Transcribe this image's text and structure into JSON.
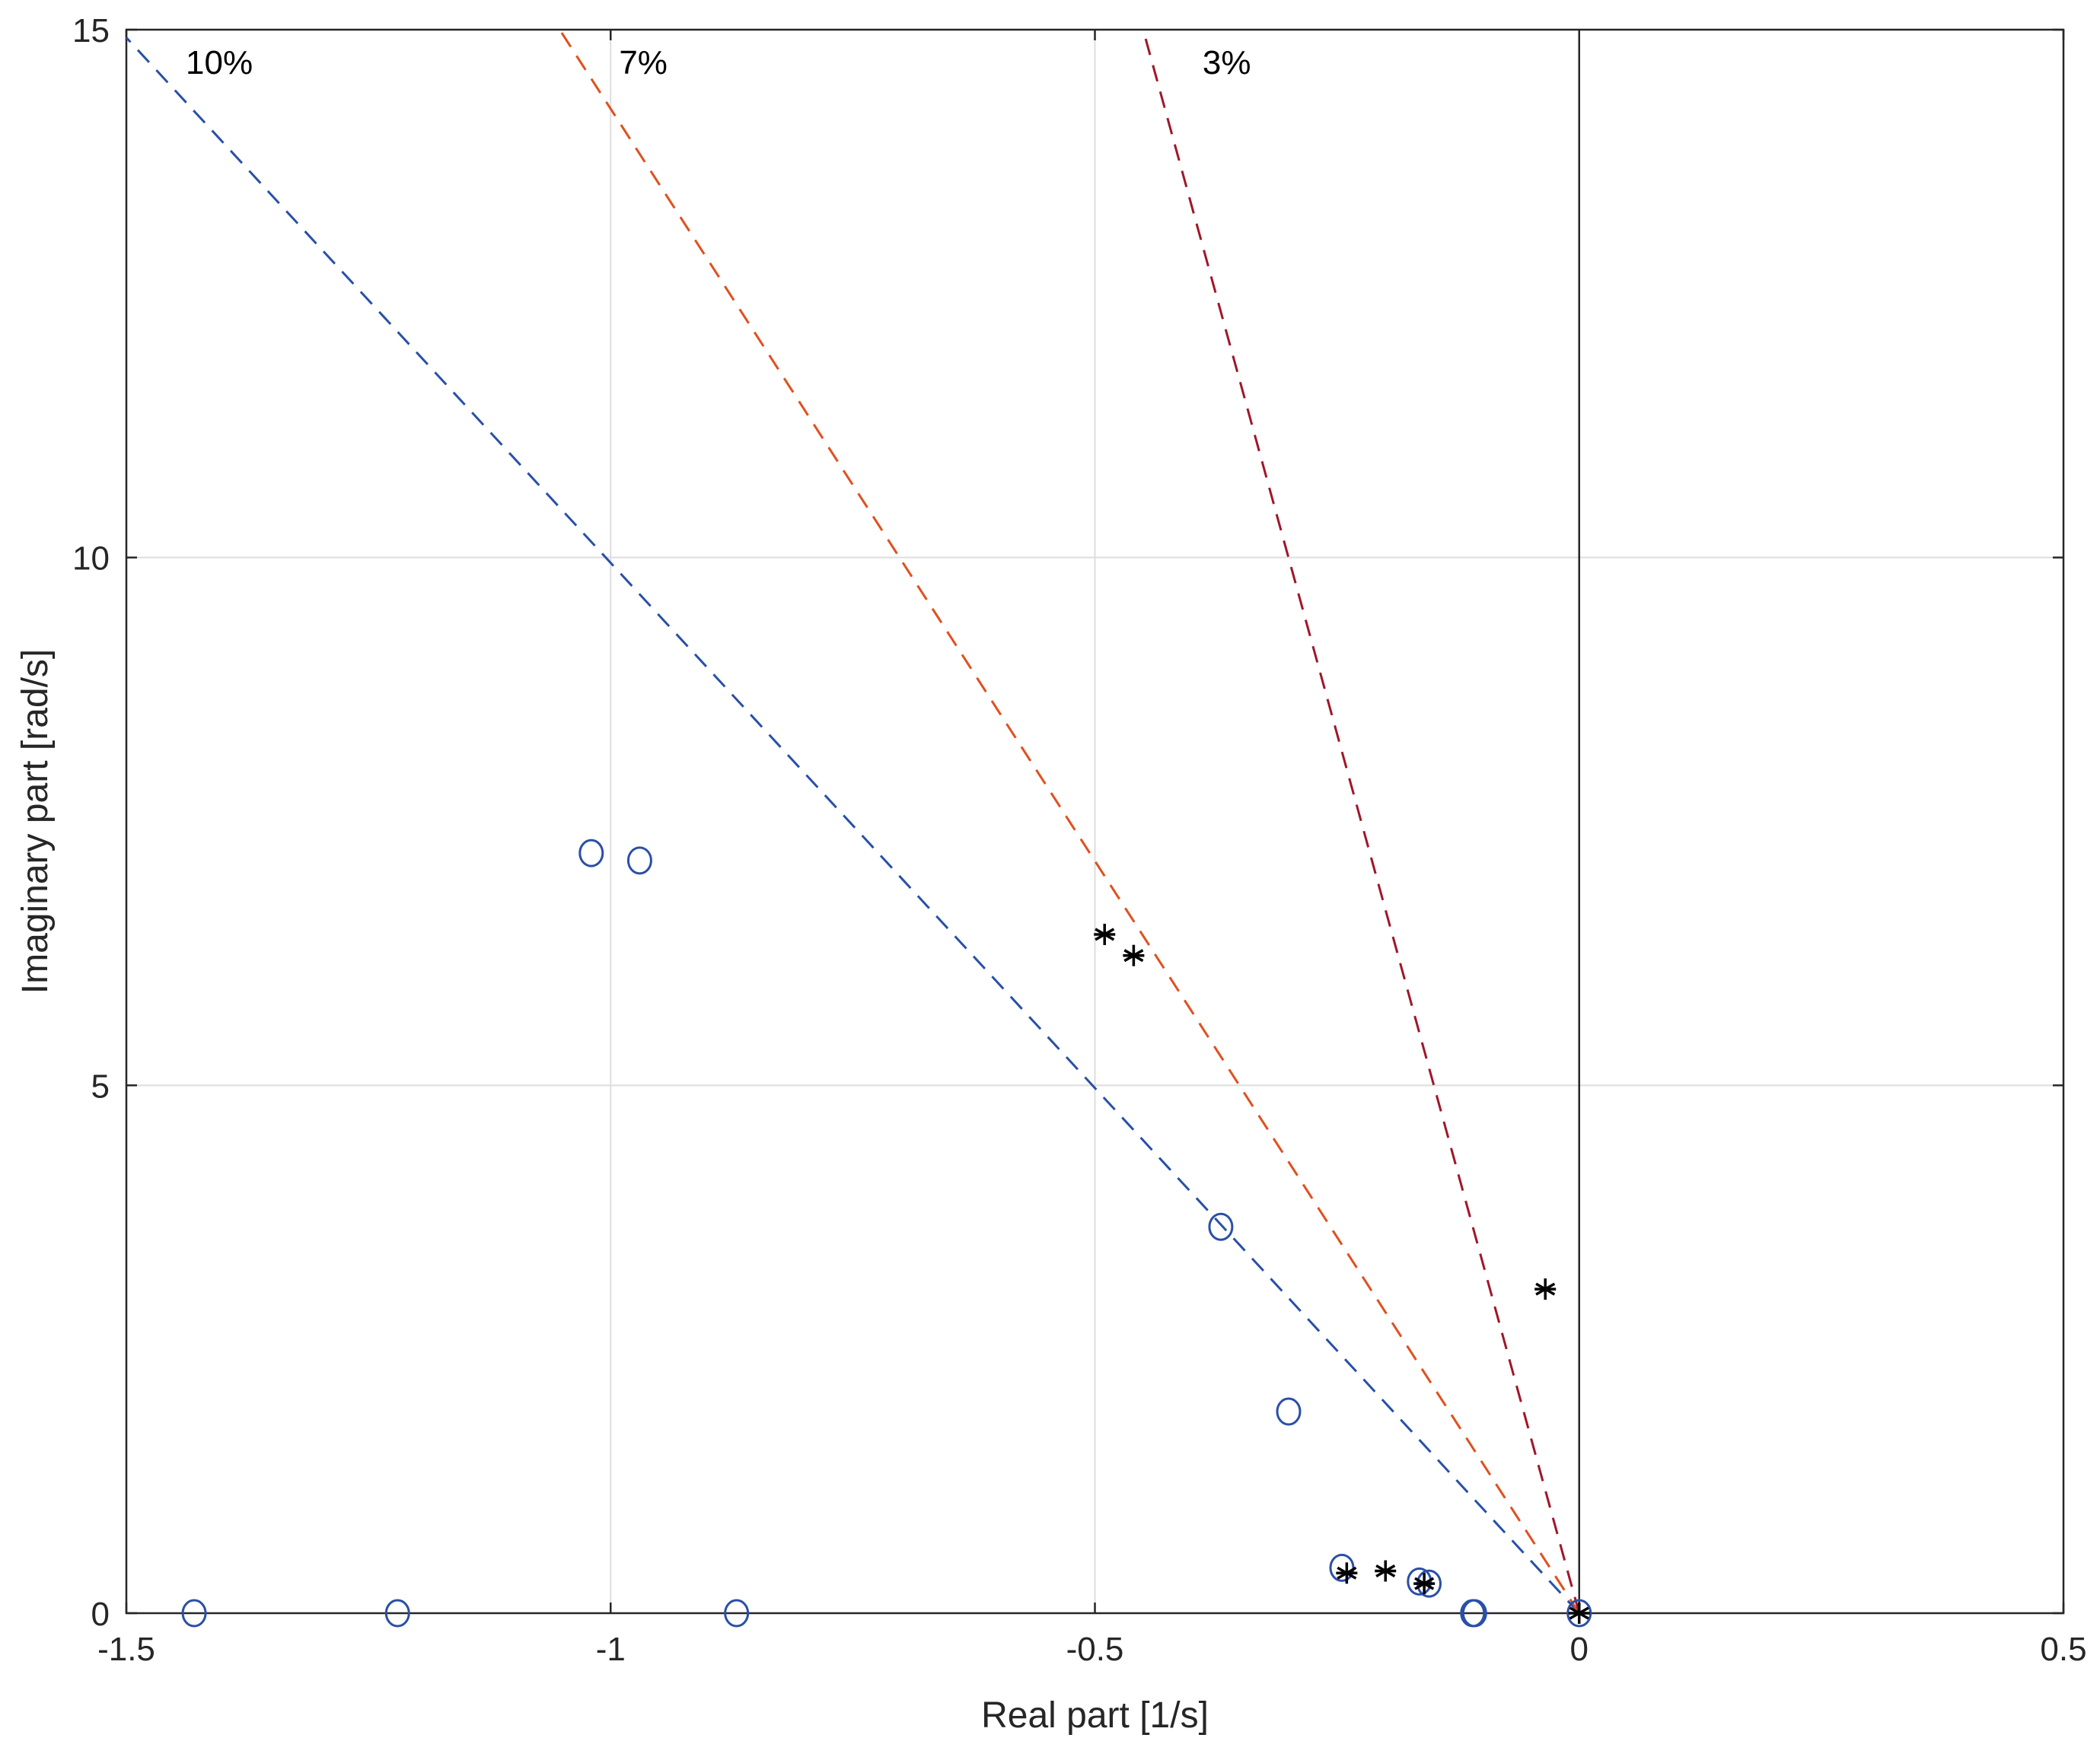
{
  "chart_data": {
    "type": "scatter",
    "xlabel": "Real part [1/s]",
    "ylabel": "Imaginary part [rad/s]",
    "xlim": [
      -1.5,
      0.5
    ],
    "ylim": [
      0,
      15
    ],
    "xticks": [
      -1.5,
      -1,
      -0.5,
      0,
      0.5
    ],
    "xtick_labels": [
      "-1.5",
      "-1",
      "-0.5",
      "0",
      "0.5"
    ],
    "yticks": [
      0,
      5,
      10,
      15
    ],
    "ytick_labels": [
      "0",
      "5",
      "10",
      "15"
    ],
    "grid": true,
    "damping_lines": [
      {
        "label": "10%",
        "zeta": 0.1,
        "color": "#2850a8"
      },
      {
        "label": "7%",
        "zeta": 0.07,
        "color": "#e0501e"
      },
      {
        "label": "3%",
        "zeta": 0.03,
        "color": "#a0162a"
      }
    ],
    "series": [
      {
        "marker": "circle",
        "color": "#2a4fa8",
        "points": [
          [
            -1.02,
            7.2
          ],
          [
            -0.97,
            7.13
          ],
          [
            -0.37,
            3.66
          ],
          [
            -0.3,
            1.91
          ],
          [
            -0.245,
            0.43
          ],
          [
            -0.165,
            0.3
          ],
          [
            -0.155,
            0.28
          ],
          [
            -0.11,
            0.0
          ],
          [
            -0.108,
            0.0
          ],
          [
            -1.43,
            0.0
          ],
          [
            -1.22,
            0.0
          ],
          [
            -0.87,
            0.0
          ],
          [
            0.0,
            0.0
          ]
        ]
      },
      {
        "marker": "asterisk",
        "color": "#000000",
        "points": [
          [
            -0.49,
            6.43
          ],
          [
            -0.46,
            6.23
          ],
          [
            -0.035,
            3.07
          ],
          [
            -0.24,
            0.38
          ],
          [
            -0.2,
            0.4
          ],
          [
            -0.16,
            0.28
          ],
          [
            0.0,
            0.0
          ]
        ]
      }
    ]
  }
}
